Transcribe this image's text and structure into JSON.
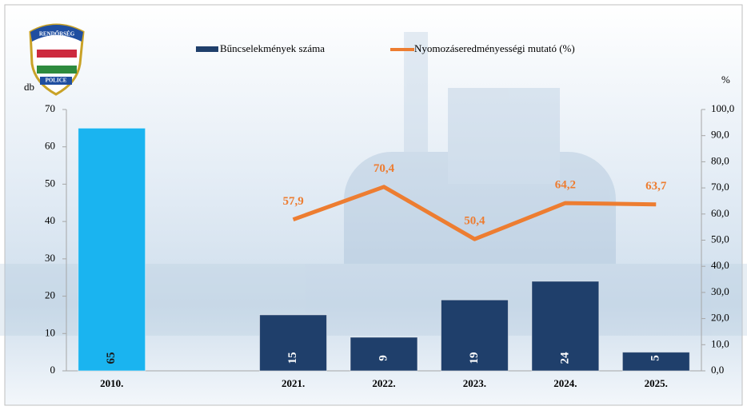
{
  "chart_data": {
    "type": "bar_line",
    "categories": [
      "2010.",
      null,
      "2021.",
      "2022.",
      "2023.",
      "2024.",
      "2025."
    ],
    "series": [
      {
        "name": "Bűncselekmények száma",
        "type": "bar",
        "color": "#1f3f6b",
        "colors": [
          "#1ab4f0",
          null,
          "#1f3f6b",
          "#1f3f6b",
          "#1f3f6b",
          "#1f3f6b",
          "#1f3f6b"
        ],
        "values": [
          65,
          null,
          15,
          9,
          19,
          24,
          5
        ]
      },
      {
        "name": "Nyomozáseredményességi mutató (%)",
        "type": "line",
        "axis": "y2",
        "color": "#ed7d31",
        "values": [
          null,
          null,
          57.9,
          70.4,
          50.4,
          64.2,
          63.7
        ],
        "value_labels": [
          null,
          null,
          "57,9",
          "70,4",
          "50,4",
          "64,2",
          "63,7"
        ]
      }
    ],
    "ylabel": "db",
    "y2label": "%",
    "ylim": [
      0,
      70
    ],
    "yticks": [
      0,
      10,
      20,
      30,
      40,
      50,
      60,
      70
    ],
    "y2lim": [
      0,
      100
    ],
    "y2ticks": [
      {
        "value": 0,
        "label": "0,0"
      },
      {
        "value": 10,
        "label": "10,0"
      },
      {
        "value": 20,
        "label": "20,0"
      },
      {
        "value": 30,
        "label": "30,0"
      },
      {
        "value": 40,
        "label": "40,0"
      },
      {
        "value": 50,
        "label": "50,0"
      },
      {
        "value": 60,
        "label": "60,0"
      },
      {
        "value": 70,
        "label": "70,0"
      },
      {
        "value": 80,
        "label": "80,0"
      },
      {
        "value": 90,
        "label": "90,0"
      },
      {
        "value": 100,
        "label": "100,0"
      }
    ],
    "logo_text": [
      "RENDŐRSÉG",
      "POLICE"
    ]
  }
}
